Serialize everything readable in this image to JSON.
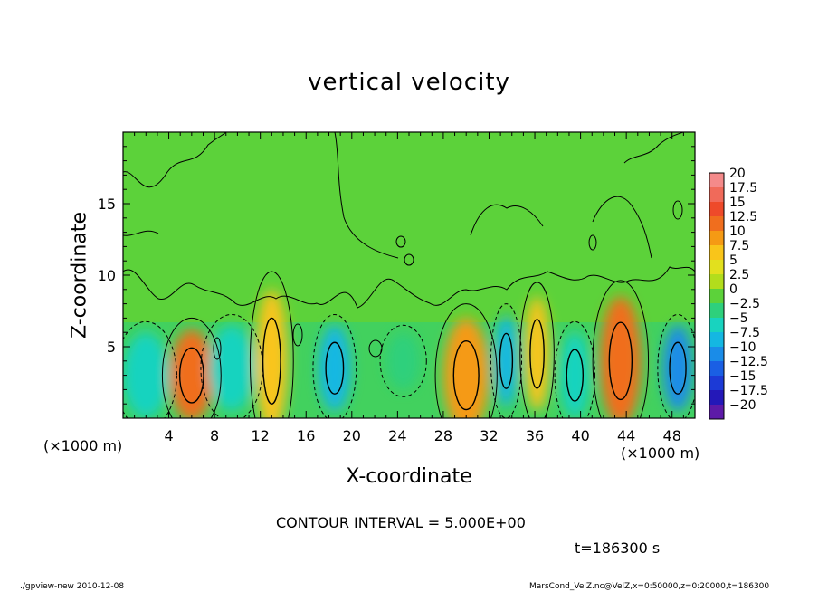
{
  "chart_data": {
    "type": "heatmap",
    "title": "vertical velocity",
    "xlabel": "X-coordinate",
    "ylabel": "Z-coordinate",
    "x_unit": "(×1000 m)",
    "y_unit": "(×1000 m)",
    "xlim": [
      0,
      50
    ],
    "ylim": [
      0,
      20
    ],
    "x_ticks": [
      4,
      8,
      12,
      16,
      20,
      24,
      28,
      32,
      36,
      40,
      44,
      48
    ],
    "y_ticks": [
      5,
      10,
      15
    ],
    "colorbar": {
      "min": -20,
      "max": 20,
      "step": 2.5,
      "labels": [
        "20",
        "17.5",
        "15",
        "12.5",
        "10",
        "7.5",
        "5",
        "2.5",
        "0",
        "−2.5",
        "−5",
        "−7.5",
        "−10",
        "−12.5",
        "−15",
        "−17.5",
        "−20"
      ],
      "colors": [
        "#f48a8a",
        "#f06a5a",
        "#ee4a2a",
        "#f06e1e",
        "#f59a14",
        "#f9c51a",
        "#e2e01e",
        "#b2dd1c",
        "#5cd23a",
        "#2ed07c",
        "#18d3bf",
        "#14b7e2",
        "#1a8ce8",
        "#1a5fe4",
        "#1c3ad6",
        "#2418b8",
        "#5d1aa8"
      ]
    },
    "cells": [
      {
        "x": 6,
        "z": 3,
        "w": 1.9,
        "h": 3.2,
        "w_value": 12
      },
      {
        "x": 13,
        "z": 4,
        "w": 1.4,
        "h": 5,
        "w_value": 7.5
      },
      {
        "x": 18.5,
        "z": 3.5,
        "w": 1.4,
        "h": 3,
        "w_value": -7
      },
      {
        "x": 2,
        "z": 3,
        "w": 2,
        "h": 3,
        "w_value": -4
      },
      {
        "x": 9.5,
        "z": 3.5,
        "w": 2,
        "h": 3,
        "w_value": -4
      },
      {
        "x": 24.5,
        "z": 4,
        "w": 1.5,
        "h": 2,
        "w_value": -3
      },
      {
        "x": 30,
        "z": 3,
        "w": 2,
        "h": 4,
        "w_value": 9
      },
      {
        "x": 33.5,
        "z": 4,
        "w": 1,
        "h": 3.2,
        "w_value": -8
      },
      {
        "x": 36.2,
        "z": 4.5,
        "w": 1.1,
        "h": 4,
        "w_value": 8
      },
      {
        "x": 39.5,
        "z": 3,
        "w": 1.3,
        "h": 3,
        "w_value": -6
      },
      {
        "x": 43.5,
        "z": 4,
        "w": 1.8,
        "h": 4.5,
        "w_value": 12
      },
      {
        "x": 48.5,
        "z": 3.5,
        "w": 1.3,
        "h": 3,
        "w_value": -10
      }
    ],
    "contour_interval_text": "CONTOUR INTERVAL = 5.000E+00",
    "time_text": "t=186300 s",
    "footer_left": "./gpview-new   2010-12-08",
    "footer_right": "MarsCond_VelZ.nc@VelZ,x=0:50000,z=0:20000,t=186300"
  }
}
